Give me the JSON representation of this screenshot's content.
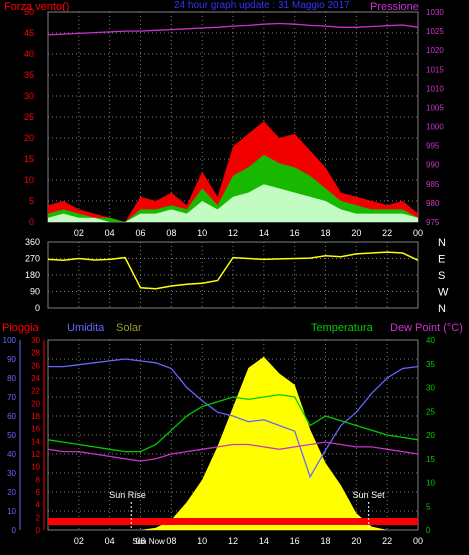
{
  "header": {
    "left_label": "Forza vento()",
    "title": "24 hour graph update : 31 Maggio 2017",
    "right_label": "Pressione"
  },
  "bottom_header": {
    "rain_label": "Pioggia",
    "humidity_label": "Umidita",
    "solar_label": "Solar",
    "temperature_label": "Temperatura",
    "dewpoint_label": "Dew Point (°C)"
  },
  "annotations": {
    "sunrise_label": "Sun Rise",
    "sunset_label": "Sun Set",
    "sunnow_label": "Sun Now"
  },
  "colors": {
    "wind": "#ff0000",
    "gust": "#00cc00",
    "calm": "#ffffff",
    "avg_wind": "#ccffcc",
    "pressure": "#cc33cc",
    "direction": "#ffff00",
    "humidity": "#6666ff",
    "temperature": "#00cc00",
    "dewpoint": "#cc33cc",
    "solar": "#ffff00",
    "rain": "#ff0000",
    "grid": "#808080",
    "axis_left": "#ff0000",
    "axis_right": "#cc33cc"
  },
  "chart_data": [
    {
      "type": "line",
      "name": "wind-pressure",
      "x_ticks": [
        "02",
        "04",
        "06",
        "08",
        "10",
        "12",
        "14",
        "16",
        "18",
        "20",
        "22",
        "00"
      ],
      "y_left_ticks": [
        "0",
        "5",
        "10",
        "15",
        "20",
        "25",
        "30",
        "35",
        "40",
        "45",
        "50"
      ],
      "y_right_ticks": [
        "975",
        "980",
        "985",
        "990",
        "995",
        "1000",
        "1005",
        "1010",
        "1015",
        "1020",
        "1025",
        "1030"
      ],
      "ylim_left": [
        0,
        50
      ],
      "ylim_right": [
        975,
        1030
      ],
      "hours": [
        0,
        1,
        2,
        3,
        4,
        5,
        6,
        7,
        8,
        9,
        10,
        11,
        12,
        13,
        14,
        15,
        16,
        17,
        18,
        19,
        20,
        21,
        22,
        23,
        24
      ],
      "pressure": [
        1024,
        1024.2,
        1024.4,
        1024.6,
        1024.8,
        1025,
        1025,
        1025.2,
        1025.4,
        1025.6,
        1025.8,
        1026,
        1026.3,
        1026.5,
        1026.8,
        1027,
        1026.8,
        1026.5,
        1026.3,
        1026,
        1026,
        1026.2,
        1026.4,
        1026.6,
        1026
      ],
      "wind": [
        4,
        5,
        3,
        2,
        1,
        0,
        6,
        5,
        7,
        4,
        12,
        6,
        18,
        21,
        24,
        20,
        21,
        17,
        13,
        7,
        6,
        5,
        4,
        5,
        2
      ],
      "gust": [
        2,
        3,
        2,
        1,
        1,
        0,
        3,
        3,
        4,
        3,
        8,
        4,
        11,
        13,
        16,
        14,
        13,
        11,
        8,
        5,
        4,
        3,
        3,
        3,
        1
      ],
      "avg_wind": [
        1,
        2,
        1,
        1,
        0,
        0,
        2,
        2,
        3,
        2,
        5,
        3,
        6,
        7,
        9,
        8,
        7,
        6,
        5,
        3,
        2,
        2,
        2,
        2,
        1
      ]
    },
    {
      "type": "scatter",
      "name": "wind-direction",
      "y_ticks": [
        "0",
        "90",
        "180",
        "270",
        "360"
      ],
      "direction_labels": [
        "N",
        "W",
        "S",
        "E",
        "N"
      ],
      "ylim": [
        0,
        360
      ],
      "hours": [
        0,
        1,
        2,
        3,
        4,
        5,
        6,
        7,
        8,
        9,
        10,
        11,
        12,
        13,
        14,
        15,
        16,
        17,
        18,
        19,
        20,
        21,
        22,
        23,
        24
      ],
      "direction": [
        265,
        260,
        270,
        262,
        265,
        275,
        110,
        105,
        120,
        130,
        135,
        150,
        275,
        270,
        265,
        268,
        270,
        272,
        285,
        280,
        295,
        300,
        305,
        300,
        260
      ]
    },
    {
      "type": "area",
      "name": "humidity-temp-solar",
      "x_ticks": [
        "02",
        "04",
        "06",
        "08",
        "10",
        "12",
        "14",
        "16",
        "18",
        "20",
        "22",
        "00"
      ],
      "y_rain_ticks": [
        "0",
        "2",
        "4",
        "6",
        "8",
        "10",
        "12",
        "14",
        "16",
        "18",
        "20",
        "22",
        "24",
        "26",
        "28",
        "30"
      ],
      "y_humidity_ticks": [
        "0",
        "10",
        "20",
        "30",
        "40",
        "50",
        "60",
        "70",
        "80",
        "90",
        "100"
      ],
      "y_temp_ticks": [
        "0",
        "5",
        "10",
        "15",
        "20",
        "25",
        "30",
        "35",
        "40"
      ],
      "ylim_humidity": [
        0,
        100
      ],
      "ylim_temp": [
        0,
        40
      ],
      "hours": [
        0,
        1,
        2,
        3,
        4,
        5,
        6,
        7,
        8,
        9,
        10,
        11,
        12,
        13,
        14,
        15,
        16,
        17,
        18,
        19,
        20,
        21,
        22,
        23,
        24
      ],
      "humidity": [
        86,
        86,
        87,
        88,
        89,
        90,
        89,
        88,
        85,
        75,
        68,
        62,
        60,
        57,
        58,
        55,
        52,
        28,
        42,
        55,
        62,
        72,
        80,
        85,
        86
      ],
      "temperature": [
        19,
        18.5,
        18,
        17.5,
        17,
        16.5,
        16.5,
        18,
        21,
        24,
        26,
        27,
        28,
        27.5,
        28,
        28.5,
        28,
        22,
        24,
        23,
        22,
        21,
        20,
        19.5,
        19
      ],
      "dewpoint": [
        17,
        16.5,
        16.5,
        16,
        15.5,
        15,
        14.5,
        15,
        16,
        16.5,
        17,
        17.5,
        18,
        18,
        17.5,
        17,
        17.5,
        18,
        18.5,
        18,
        17.5,
        17.5,
        17,
        16.5,
        16
      ],
      "solar": [
        0,
        0,
        0,
        0,
        0,
        0,
        0,
        4,
        18,
        50,
        90,
        150,
        220,
        290,
        310,
        280,
        260,
        180,
        120,
        80,
        30,
        6,
        0,
        0,
        0
      ],
      "solar_max": 340,
      "rain": [
        0,
        0,
        0,
        0,
        0,
        0,
        0,
        0,
        0,
        0,
        0,
        0,
        0,
        0,
        0,
        0,
        0,
        0,
        0,
        0,
        0,
        0,
        0,
        0,
        0
      ]
    }
  ]
}
